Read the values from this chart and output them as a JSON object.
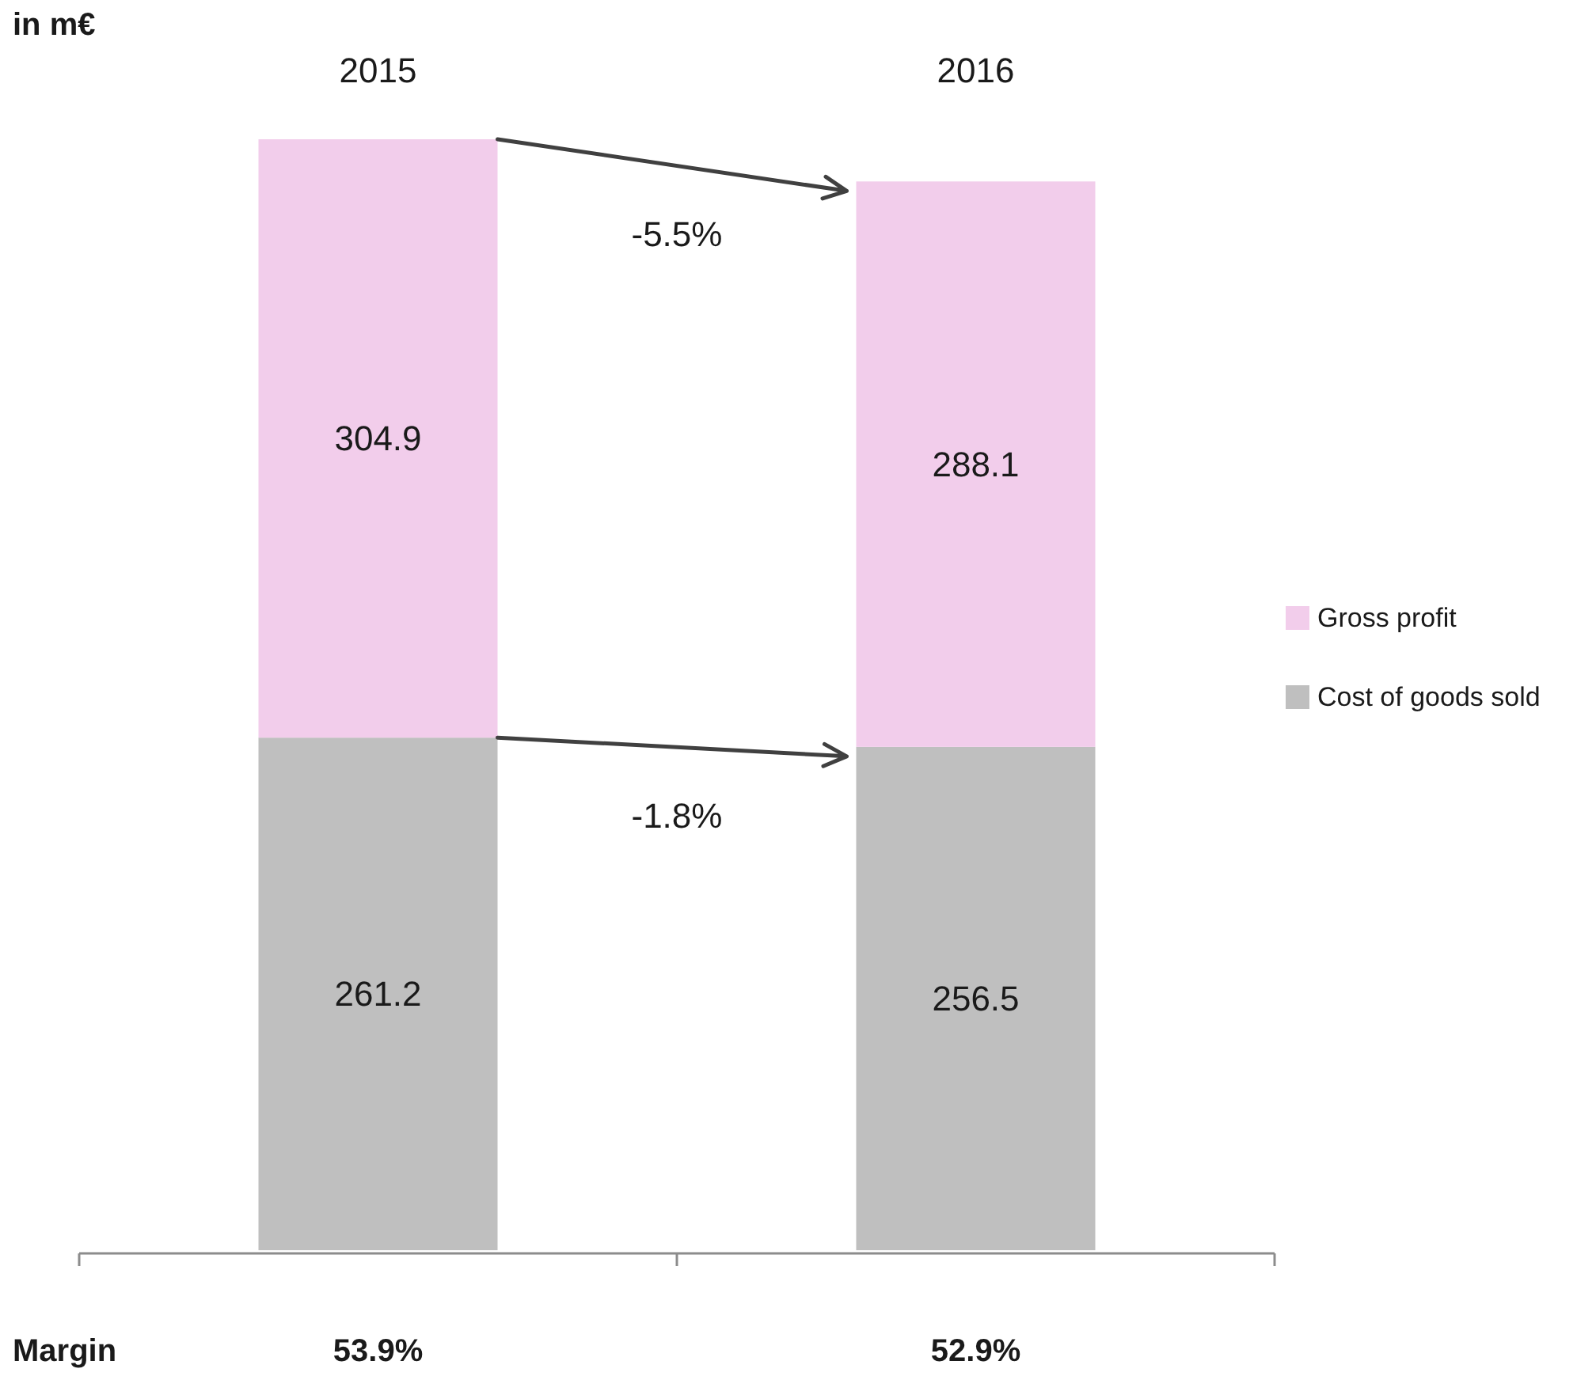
{
  "chart_data": {
    "type": "bar",
    "stacked": true,
    "categories": [
      "2015",
      "2016"
    ],
    "series": [
      {
        "name": "Cost of goods sold",
        "color": "#bfbfbf",
        "values": [
          261.2,
          256.5
        ]
      },
      {
        "name": "Gross profit",
        "color": "#f2cdeb",
        "values": [
          304.9,
          288.1
        ]
      }
    ],
    "data_labels": true,
    "legend": "right",
    "annotations": [
      "in m€",
      "-5.5%",
      "-1.8%",
      "Margin",
      "53.9%",
      "52.9%"
    ]
  }
}
